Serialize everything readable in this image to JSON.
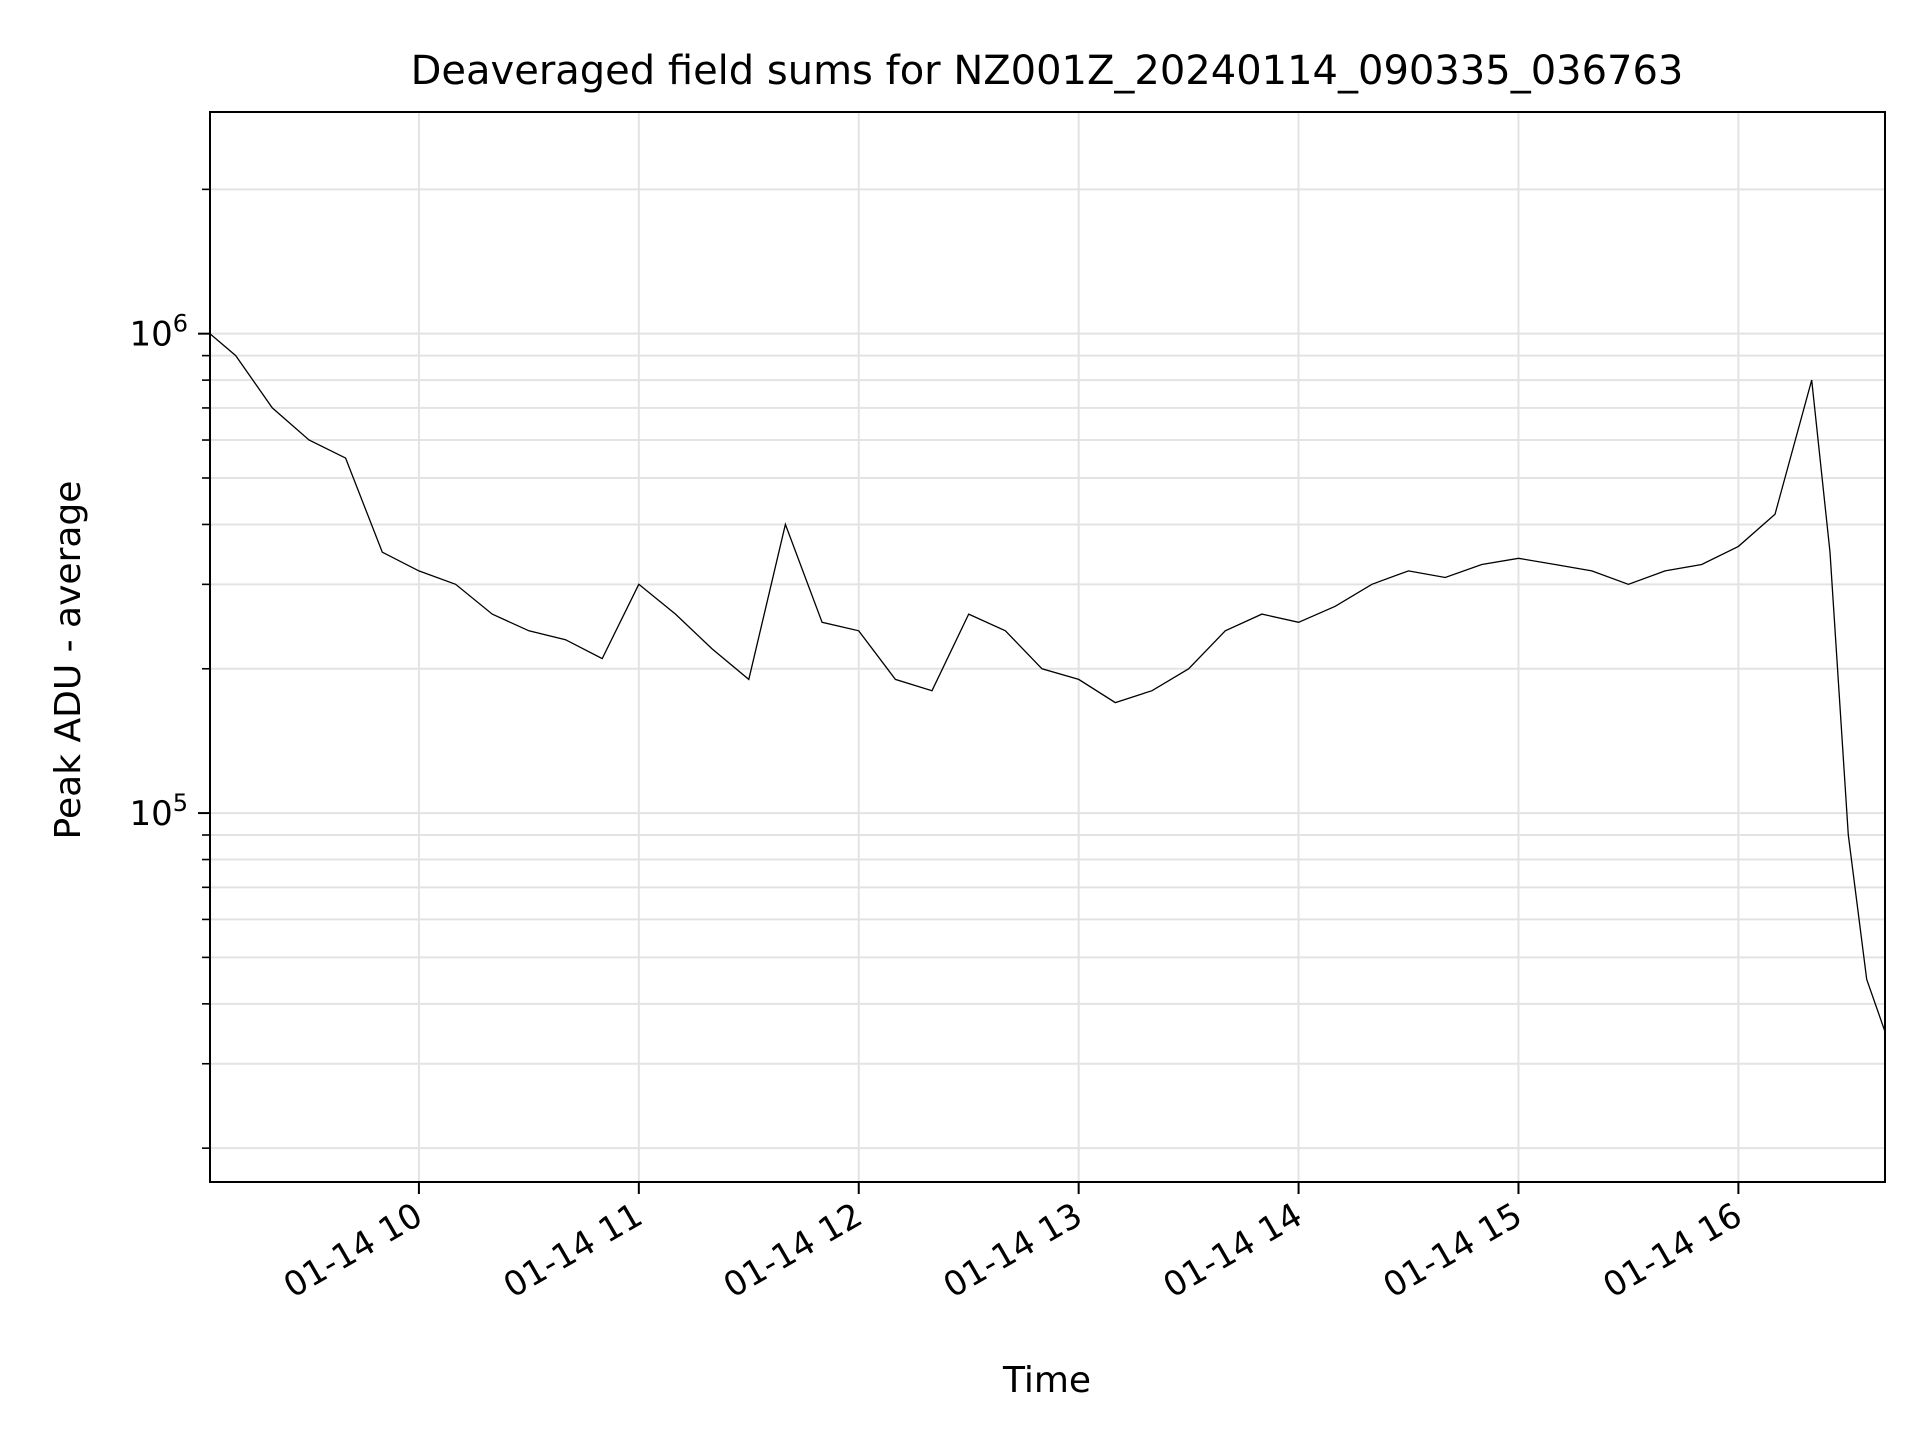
{
  "chart_data": {
    "type": "line",
    "title": "Deaveraged field sums for NZ001Z_20240114_090335_036763",
    "xlabel": "Time",
    "ylabel": "Peak ADU - average",
    "yscale": "log",
    "grid": true,
    "xlim": [
      "2024-01-14 09:03",
      "2024-01-14 16:40"
    ],
    "ylim": [
      17000,
      2900000
    ],
    "x_ticks": [
      {
        "time": "2024-01-14 10:00",
        "label": "01-14 10"
      },
      {
        "time": "2024-01-14 11:00",
        "label": "01-14 11"
      },
      {
        "time": "2024-01-14 12:00",
        "label": "01-14 12"
      },
      {
        "time": "2024-01-14 13:00",
        "label": "01-14 13"
      },
      {
        "time": "2024-01-14 14:00",
        "label": "01-14 14"
      },
      {
        "time": "2024-01-14 15:00",
        "label": "01-14 15"
      },
      {
        "time": "2024-01-14 16:00",
        "label": "01-14 16"
      }
    ],
    "y_ticks": [
      {
        "value": 100000,
        "base": "10",
        "exp": "5"
      },
      {
        "value": 1000000,
        "base": "10",
        "exp": "6"
      }
    ],
    "line_color": "#000000",
    "series": [
      {
        "x": [
          "2024-01-14 09:03",
          "2024-01-14 09:10",
          "2024-01-14 09:20",
          "2024-01-14 09:30",
          "2024-01-14 09:40",
          "2024-01-14 09:50",
          "2024-01-14 10:00",
          "2024-01-14 10:10",
          "2024-01-14 10:20",
          "2024-01-14 10:30",
          "2024-01-14 10:40",
          "2024-01-14 10:50",
          "2024-01-14 11:00",
          "2024-01-14 11:10",
          "2024-01-14 11:20",
          "2024-01-14 11:30",
          "2024-01-14 11:40",
          "2024-01-14 11:50",
          "2024-01-14 12:00",
          "2024-01-14 12:10",
          "2024-01-14 12:20",
          "2024-01-14 12:30",
          "2024-01-14 12:40",
          "2024-01-14 12:50",
          "2024-01-14 13:00",
          "2024-01-14 13:10",
          "2024-01-14 13:20",
          "2024-01-14 13:30",
          "2024-01-14 13:40",
          "2024-01-14 13:50",
          "2024-01-14 14:00",
          "2024-01-14 14:10",
          "2024-01-14 14:20",
          "2024-01-14 14:30",
          "2024-01-14 14:40",
          "2024-01-14 14:50",
          "2024-01-14 15:00",
          "2024-01-14 15:10",
          "2024-01-14 15:20",
          "2024-01-14 15:30",
          "2024-01-14 15:40",
          "2024-01-14 15:50",
          "2024-01-14 16:00",
          "2024-01-14 16:10",
          "2024-01-14 16:20",
          "2024-01-14 16:25",
          "2024-01-14 16:30",
          "2024-01-14 16:35",
          "2024-01-14 16:40"
        ],
        "y": [
          1000000,
          900000,
          700000,
          600000,
          550000,
          350000,
          320000,
          300000,
          260000,
          240000,
          230000,
          210000,
          300000,
          260000,
          220000,
          190000,
          400000,
          250000,
          240000,
          190000,
          180000,
          260000,
          240000,
          200000,
          190000,
          170000,
          180000,
          200000,
          240000,
          260000,
          250000,
          270000,
          300000,
          320000,
          310000,
          330000,
          340000,
          330000,
          320000,
          300000,
          320000,
          330000,
          360000,
          420000,
          800000,
          350000,
          90000,
          45000,
          35000
        ]
      }
    ]
  }
}
